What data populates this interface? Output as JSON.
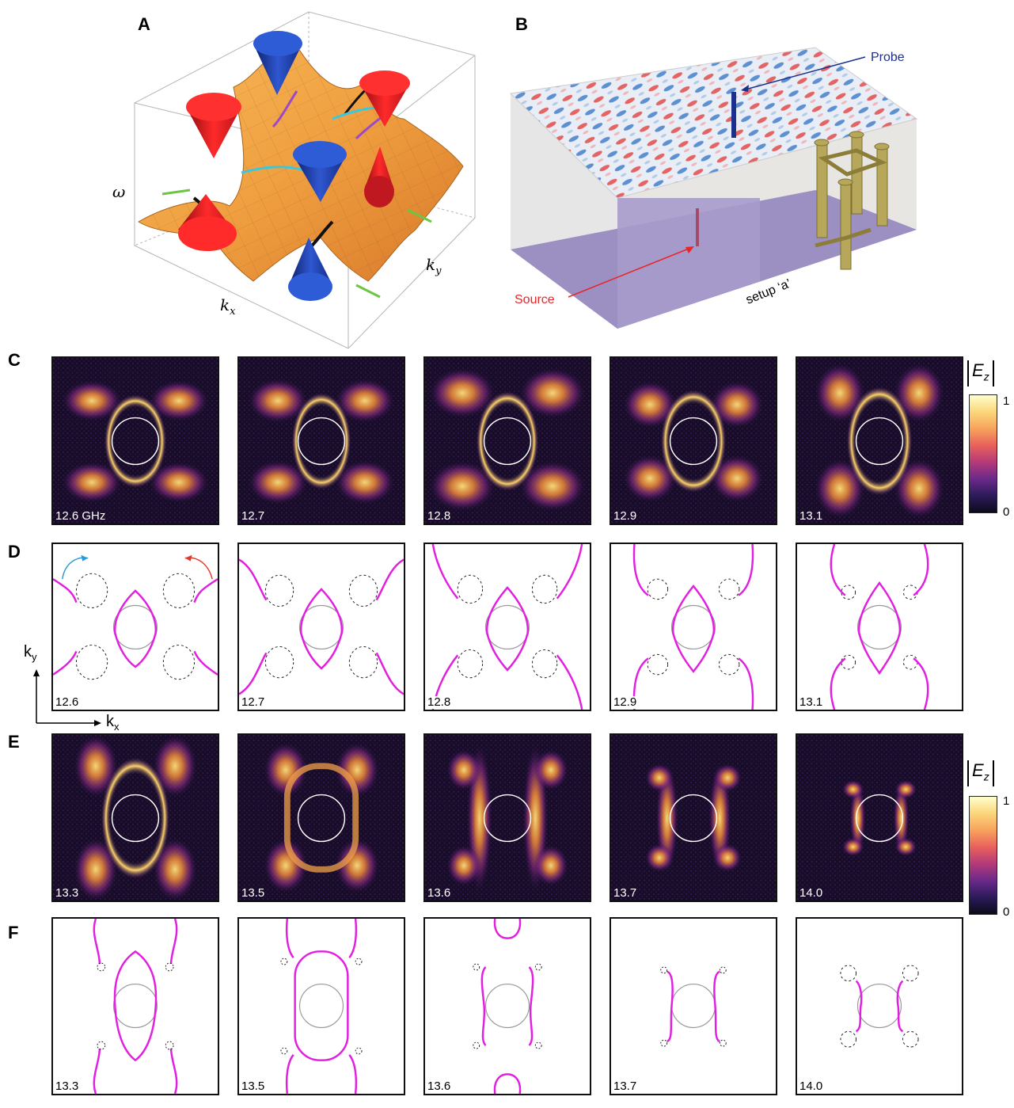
{
  "panels": {
    "A": {
      "letter": "A",
      "labels": {
        "omega": "ω",
        "kx": "k",
        "kx_sub": "x",
        "ky": "k",
        "ky_sub": "y"
      }
    },
    "B": {
      "letter": "B",
      "labels": {
        "probe": "Probe",
        "source": "Source",
        "setup": "setup ‘a’"
      },
      "colors": {
        "probe": "#1b2f8c",
        "source": "#e8262a",
        "base": "#9c8fc2"
      }
    },
    "C": {
      "letter": "C",
      "frequencies": [
        "12.6 GHz",
        "12.7",
        "12.8",
        "12.9",
        "13.1"
      ]
    },
    "D": {
      "letter": "D",
      "frequencies": [
        "12.6",
        "12.7",
        "12.8",
        "12.9",
        "13.1"
      ],
      "axis": {
        "ky": "k",
        "ky_sub": "y",
        "kx": "k",
        "kx_sub": "x"
      }
    },
    "E": {
      "letter": "E",
      "frequencies": [
        "13.3",
        "13.5",
        "13.6",
        "13.7",
        "14.0"
      ]
    },
    "F": {
      "letter": "F",
      "frequencies": [
        "13.3",
        "13.5",
        "13.6",
        "13.7",
        "14.0"
      ]
    }
  },
  "colorbar": {
    "title": "E",
    "title_sub": "z",
    "max": "1",
    "min": "0",
    "stops": [
      "#ffffcc",
      "#fbd67a",
      "#f7a35c",
      "#e8615b",
      "#b43a78",
      "#6b2a8a",
      "#2c1a5a",
      "#0b0b1a"
    ]
  },
  "style_colors": {
    "contour": "#e21ee0",
    "circle": "#999999",
    "dashed": "#222222"
  }
}
